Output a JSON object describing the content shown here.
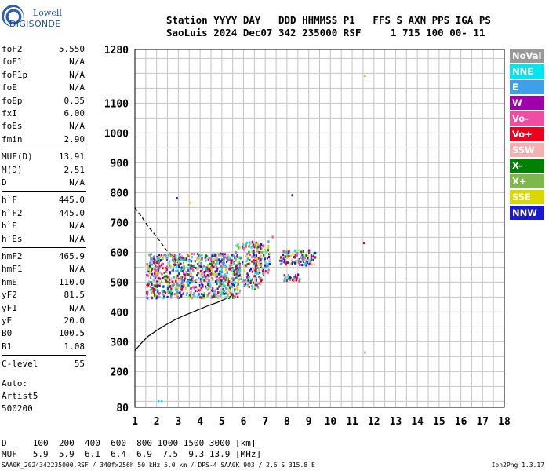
{
  "logo": {
    "line1": "Lowell",
    "line2": "DIGISONDE"
  },
  "header": {
    "line1": "Station YYYY DAY   DDD HHMMSS P1   FFS S AXN PPS IGA PS",
    "line2": "SaoLuis 2024 Dec07 342 235000 RSF     1 715 100 00- 11"
  },
  "params": [
    {
      "name": "foF2",
      "value": "5.550"
    },
    {
      "name": "foF1",
      "value": "N/A"
    },
    {
      "name": "foF1p",
      "value": "N/A"
    },
    {
      "name": "foE",
      "value": "N/A"
    },
    {
      "name": "foEp",
      "value": "0.35"
    },
    {
      "name": "fxI",
      "value": "6.00"
    },
    {
      "name": "foEs",
      "value": "N/A"
    },
    {
      "name": "fmin",
      "value": "2.90"
    },
    {
      "name": "MUF(D)",
      "value": "13.91"
    },
    {
      "name": "M(D)",
      "value": "2.51"
    },
    {
      "name": "D",
      "value": "N/A"
    },
    {
      "name": "h`F",
      "value": "445.0"
    },
    {
      "name": "h`F2",
      "value": "445.0"
    },
    {
      "name": "h`E",
      "value": "N/A"
    },
    {
      "name": "h`Es",
      "value": "N/A"
    },
    {
      "name": "hmF2",
      "value": "465.9"
    },
    {
      "name": "hmF1",
      "value": "N/A"
    },
    {
      "name": "hmE",
      "value": "110.0"
    },
    {
      "name": "yF2",
      "value": "81.5"
    },
    {
      "name": "yF1",
      "value": "N/A"
    },
    {
      "name": "yE",
      "value": "20.0"
    },
    {
      "name": "B0",
      "value": "100.5"
    },
    {
      "name": "B1",
      "value": "1.08"
    },
    {
      "name": "C-level",
      "value": "55"
    }
  ],
  "autoscale": {
    "line1": "Auto:",
    "line2": "Artist5",
    "line3": "500200"
  },
  "legend": [
    {
      "label": "NoVal",
      "color": "#999999"
    },
    {
      "label": "NNE",
      "color": "#00e5ee"
    },
    {
      "label": "E",
      "color": "#3ea0e8"
    },
    {
      "label": "W",
      "color": "#a000a8"
    },
    {
      "label": "Vo-",
      "color": "#f04ca4"
    },
    {
      "label": "Vo+",
      "color": "#e8001c"
    },
    {
      "label": "SSW",
      "color": "#f4b0b0"
    },
    {
      "label": "X-",
      "color": "#008000"
    },
    {
      "label": "X+",
      "color": "#7cb84c"
    },
    {
      "label": "SSE",
      "color": "#d8d800"
    },
    {
      "label": "NNW",
      "color": "#1818d0"
    }
  ],
  "muf_table": {
    "line1": "D     100  200  400  600  800 1000 1500 3000 [km]",
    "line2": "MUF   5.9  5.9  6.1  6.4  6.9  7.5  9.3 13.9 [MHz]"
  },
  "footer": "SAA0K_2024342235000.RSF / 340fx256h 50 kHz 5.0 km / DPS-4 SAA0K 903 / 2.6 S 315.8 E",
  "version": "Ion2Png 1.3.17",
  "chart_data": {
    "type": "scatter",
    "x_ticks": [
      "1",
      "2",
      "3",
      "4",
      "5",
      "6",
      "7",
      "8",
      "9",
      "10",
      "11",
      "12",
      "13",
      "14",
      "15",
      "16",
      "17",
      "18"
    ],
    "y_ticks": [
      "80",
      "200",
      "300",
      "400",
      "500",
      "600",
      "700",
      "800",
      "900",
      "1000",
      "1100",
      "1280"
    ],
    "xlim": [
      1,
      18
    ],
    "ylim": [
      80,
      1280
    ],
    "grid": true,
    "legend_position": "right",
    "profile_curve": {
      "x": [
        1.0,
        1.3,
        1.6,
        2.0,
        2.4,
        2.8,
        3.2,
        3.6,
        4.0,
        4.4,
        4.8,
        5.2,
        5.4,
        5.55
      ],
      "y": [
        270,
        296,
        318,
        338,
        356,
        372,
        386,
        398,
        410,
        422,
        432,
        445,
        452,
        462
      ]
    },
    "trace_curve": {
      "x": [
        1.0,
        1.3,
        1.6,
        2.0,
        2.4,
        2.8,
        3.2,
        3.4,
        3.6,
        3.8,
        4.0
      ],
      "y": [
        750,
        720,
        688,
        652,
        612,
        578,
        548,
        530,
        515,
        500,
        490
      ]
    },
    "echo_regions": [
      {
        "x": [
          1.5,
          5.8
        ],
        "y": [
          450,
          600
        ],
        "n": 900
      },
      {
        "x": [
          5.6,
          6.8
        ],
        "y": [
          480,
          640
        ],
        "n": 140
      },
      {
        "x": [
          6.4,
          7.2
        ],
        "y": [
          530,
          640
        ],
        "n": 90
      },
      {
        "x": [
          7.6,
          9.3
        ],
        "y": [
          560,
          610
        ],
        "n": 110
      },
      {
        "x": [
          7.8,
          8.6
        ],
        "y": [
          505,
          530
        ],
        "n": 40
      }
    ],
    "isolated_echoes": [
      {
        "x": 2.9,
        "y": 785,
        "c": "#1818d0"
      },
      {
        "x": 8.2,
        "y": 795,
        "c": "#1818d0"
      },
      {
        "x": 7.3,
        "y": 655,
        "c": "#f04ca4"
      },
      {
        "x": 11.5,
        "y": 635,
        "c": "#e8001c"
      },
      {
        "x": 11.55,
        "y": 1195,
        "c": "#7cb84c"
      },
      {
        "x": 11.55,
        "y": 268,
        "c": "#7cb84c"
      },
      {
        "x": 2.05,
        "y": 105,
        "c": "#00e5ee"
      },
      {
        "x": 2.2,
        "y": 105,
        "c": "#00e5ee"
      },
      {
        "x": 3.5,
        "y": 770,
        "c": "#d8d800"
      }
    ]
  }
}
